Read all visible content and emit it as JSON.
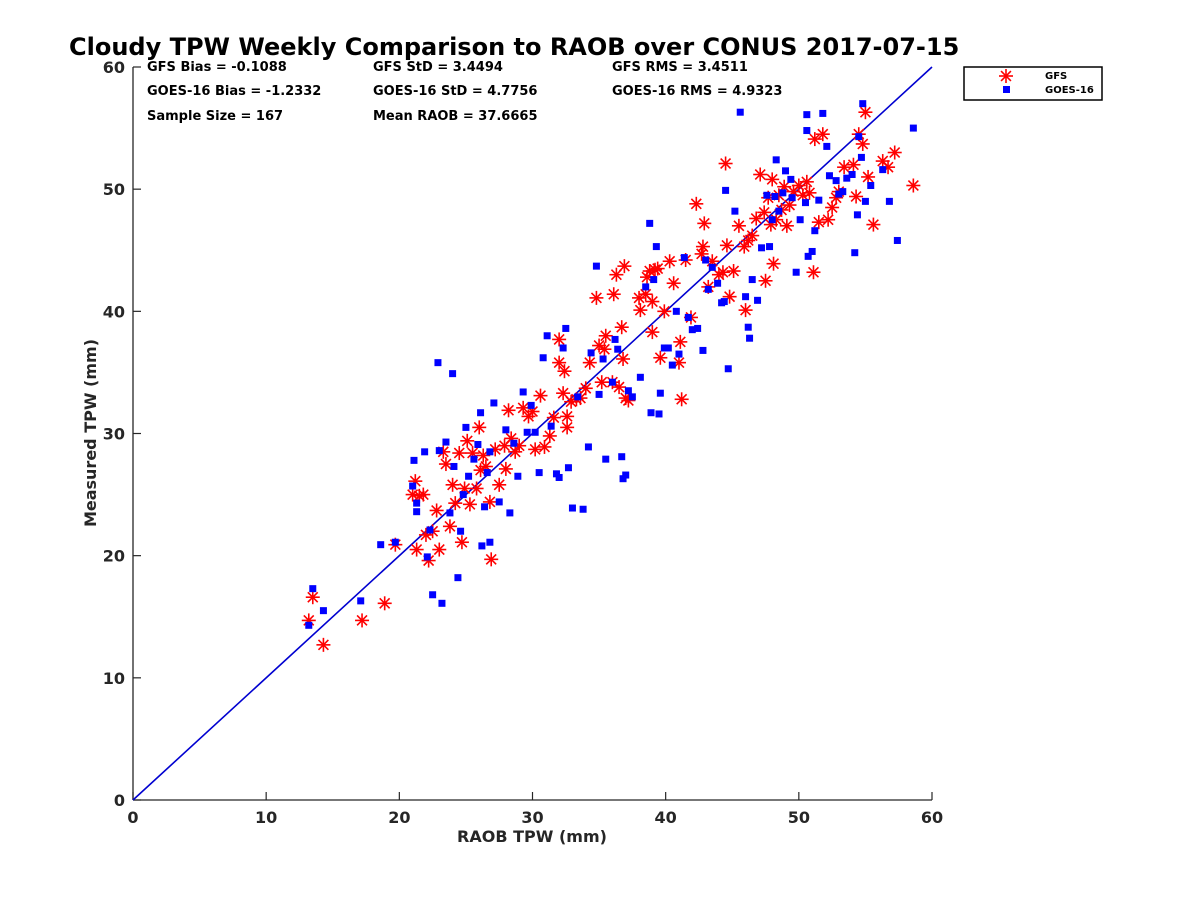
{
  "chart_data": {
    "type": "scatter",
    "title": "Cloudy TPW Weekly Comparison to RAOB over CONUS 2017-07-15",
    "xlabel": "RAOB TPW (mm)",
    "ylabel": "Measured TPW (mm)",
    "xlim": [
      0,
      60
    ],
    "ylim": [
      0,
      60
    ],
    "xticks": [
      "0",
      "10",
      "20",
      "30",
      "40",
      "50",
      "60"
    ],
    "yticks": [
      "0",
      "10",
      "20",
      "30",
      "40",
      "50",
      "60"
    ],
    "grid": false,
    "legend_position": "outside top-right",
    "reference_line": {
      "label": "1:1",
      "color": "#0000d0",
      "from": [
        0,
        0
      ],
      "to": [
        60,
        60
      ]
    },
    "stats": {
      "gfs_bias": "GFS Bias = -0.1088",
      "goes_bias": "GOES-16 Bias = -1.2332",
      "sample_size": "Sample Size = 167",
      "gfs_std": "GFS StD = 3.4494",
      "goes_std": "GOES-16 StD = 4.7756",
      "mean_raob": "Mean RAOB = 37.6665",
      "gfs_rms": "GFS RMS = 3.4511",
      "goes_rms": "GOES-16 RMS = 4.9323"
    },
    "series": [
      {
        "name": "GFS",
        "marker": "asterisk",
        "color": "#ff0000",
        "points": [
          [
            13.2,
            14.7
          ],
          [
            13.5,
            16.6
          ],
          [
            14.3,
            12.7
          ],
          [
            17.2,
            14.7
          ],
          [
            18.9,
            16.1
          ],
          [
            19.7,
            20.9
          ],
          [
            21.0,
            25.0
          ],
          [
            21.2,
            26.1
          ],
          [
            21.3,
            20.5
          ],
          [
            21.5,
            24.9
          ],
          [
            21.8,
            25.0
          ],
          [
            22.0,
            21.7
          ],
          [
            22.2,
            19.6
          ],
          [
            22.5,
            22.0
          ],
          [
            22.8,
            23.7
          ],
          [
            23.0,
            20.5
          ],
          [
            23.3,
            28.5
          ],
          [
            23.5,
            27.5
          ],
          [
            23.8,
            22.4
          ],
          [
            24.0,
            25.8
          ],
          [
            24.2,
            24.3
          ],
          [
            24.5,
            28.4
          ],
          [
            24.7,
            21.1
          ],
          [
            24.9,
            25.5
          ],
          [
            25.1,
            29.4
          ],
          [
            25.3,
            24.2
          ],
          [
            25.5,
            28.4
          ],
          [
            25.8,
            25.5
          ],
          [
            26.0,
            30.5
          ],
          [
            26.1,
            27.0
          ],
          [
            26.3,
            28.2
          ],
          [
            26.5,
            27.3
          ],
          [
            26.8,
            24.4
          ],
          [
            26.9,
            19.7
          ],
          [
            27.2,
            28.7
          ],
          [
            27.5,
            25.8
          ],
          [
            27.9,
            29.0
          ],
          [
            28.0,
            27.1
          ],
          [
            28.2,
            31.9
          ],
          [
            28.4,
            29.6
          ],
          [
            28.7,
            28.5
          ],
          [
            29.0,
            29.0
          ],
          [
            29.3,
            32.1
          ],
          [
            29.7,
            31.4
          ],
          [
            30.0,
            31.8
          ],
          [
            30.2,
            28.7
          ],
          [
            30.6,
            33.1
          ],
          [
            30.9,
            28.9
          ],
          [
            31.3,
            29.8
          ],
          [
            31.6,
            31.3
          ],
          [
            32.0,
            35.8
          ],
          [
            32.0,
            37.7
          ],
          [
            32.3,
            33.3
          ],
          [
            32.4,
            35.1
          ],
          [
            32.6,
            31.4
          ],
          [
            32.6,
            30.5
          ],
          [
            32.9,
            32.6
          ],
          [
            33.3,
            32.8
          ],
          [
            33.6,
            32.9
          ],
          [
            34.0,
            33.7
          ],
          [
            34.3,
            35.8
          ],
          [
            34.8,
            41.1
          ],
          [
            35.0,
            37.2
          ],
          [
            35.2,
            34.2
          ],
          [
            35.4,
            36.9
          ],
          [
            35.5,
            38.0
          ],
          [
            36.0,
            34.2
          ],
          [
            36.1,
            41.4
          ],
          [
            36.3,
            43.0
          ],
          [
            36.5,
            33.8
          ],
          [
            36.7,
            38.7
          ],
          [
            36.8,
            36.1
          ],
          [
            36.9,
            43.7
          ],
          [
            37.0,
            32.9
          ],
          [
            37.2,
            32.7
          ],
          [
            38.0,
            41.1
          ],
          [
            38.1,
            40.1
          ],
          [
            38.5,
            41.4
          ],
          [
            38.6,
            42.8
          ],
          [
            38.8,
            43.3
          ],
          [
            39.0,
            38.3
          ],
          [
            39.0,
            40.8
          ],
          [
            39.2,
            43.4
          ],
          [
            39.4,
            43.5
          ],
          [
            39.6,
            36.2
          ],
          [
            39.9,
            40.0
          ],
          [
            40.3,
            44.1
          ],
          [
            40.6,
            42.3
          ],
          [
            41.0,
            35.8
          ],
          [
            41.1,
            37.5
          ],
          [
            41.2,
            32.8
          ],
          [
            41.5,
            44.2
          ],
          [
            41.9,
            39.5
          ],
          [
            42.3,
            48.8
          ],
          [
            42.7,
            44.7
          ],
          [
            42.8,
            45.3
          ],
          [
            42.9,
            47.2
          ],
          [
            43.2,
            42.0
          ],
          [
            43.5,
            44.1
          ],
          [
            44.0,
            43.0
          ],
          [
            44.3,
            43.2
          ],
          [
            44.5,
            52.1
          ],
          [
            44.6,
            45.4
          ],
          [
            44.8,
            41.2
          ],
          [
            45.1,
            43.3
          ],
          [
            45.5,
            47.0
          ],
          [
            45.9,
            45.3
          ],
          [
            46.0,
            40.1
          ],
          [
            46.2,
            45.8
          ],
          [
            46.5,
            46.2
          ],
          [
            46.8,
            47.6
          ],
          [
            47.1,
            51.2
          ],
          [
            47.4,
            48.1
          ],
          [
            47.5,
            42.5
          ],
          [
            47.7,
            49.3
          ],
          [
            47.9,
            47.1
          ],
          [
            48.0,
            50.8
          ],
          [
            48.1,
            43.9
          ],
          [
            48.3,
            47.5
          ],
          [
            48.5,
            49.5
          ],
          [
            48.7,
            48.3
          ],
          [
            48.9,
            50.2
          ],
          [
            49.1,
            47.0
          ],
          [
            49.3,
            48.7
          ],
          [
            49.6,
            49.8
          ],
          [
            50.0,
            50.3
          ],
          [
            50.3,
            49.5
          ],
          [
            50.6,
            50.6
          ],
          [
            50.8,
            49.7
          ],
          [
            51.1,
            43.2
          ],
          [
            51.2,
            54.1
          ],
          [
            51.5,
            47.3
          ],
          [
            51.8,
            54.5
          ],
          [
            52.2,
            47.5
          ],
          [
            52.5,
            48.5
          ],
          [
            52.8,
            49.3
          ],
          [
            53.0,
            49.8
          ],
          [
            53.4,
            51.8
          ],
          [
            54.1,
            52.0
          ],
          [
            54.3,
            49.4
          ],
          [
            54.5,
            54.5
          ],
          [
            54.8,
            53.7
          ],
          [
            55.0,
            56.3
          ],
          [
            55.2,
            51.0
          ],
          [
            55.6,
            47.1
          ],
          [
            56.3,
            52.3
          ],
          [
            56.7,
            51.8
          ],
          [
            57.2,
            53.0
          ],
          [
            58.6,
            50.3
          ]
        ]
      },
      {
        "name": "GOES-16",
        "marker": "square",
        "color": "#0000ff",
        "points": [
          [
            13.2,
            14.3
          ],
          [
            13.5,
            17.3
          ],
          [
            14.3,
            15.5
          ],
          [
            17.1,
            16.3
          ],
          [
            18.6,
            20.9
          ],
          [
            19.7,
            21.1
          ],
          [
            21.0,
            25.7
          ],
          [
            21.1,
            27.8
          ],
          [
            21.3,
            24.3
          ],
          [
            21.3,
            23.6
          ],
          [
            21.9,
            28.5
          ],
          [
            22.1,
            19.9
          ],
          [
            22.3,
            22.1
          ],
          [
            22.5,
            16.8
          ],
          [
            22.9,
            35.8
          ],
          [
            23.0,
            28.6
          ],
          [
            23.2,
            16.1
          ],
          [
            23.5,
            29.3
          ],
          [
            23.8,
            23.5
          ],
          [
            24.0,
            34.9
          ],
          [
            24.1,
            27.3
          ],
          [
            24.4,
            18.2
          ],
          [
            24.6,
            22.0
          ],
          [
            24.8,
            25.0
          ],
          [
            25.0,
            30.5
          ],
          [
            25.2,
            26.5
          ],
          [
            25.6,
            27.9
          ],
          [
            25.9,
            29.1
          ],
          [
            26.1,
            31.7
          ],
          [
            26.2,
            20.8
          ],
          [
            26.4,
            24.0
          ],
          [
            26.6,
            26.8
          ],
          [
            26.8,
            21.1
          ],
          [
            26.8,
            28.5
          ],
          [
            27.1,
            32.5
          ],
          [
            27.5,
            24.4
          ],
          [
            28.0,
            30.3
          ],
          [
            28.3,
            23.5
          ],
          [
            28.6,
            29.2
          ],
          [
            28.9,
            26.5
          ],
          [
            29.3,
            33.4
          ],
          [
            29.6,
            30.1
          ],
          [
            29.9,
            32.3
          ],
          [
            30.2,
            30.1
          ],
          [
            30.5,
            26.8
          ],
          [
            30.8,
            36.2
          ],
          [
            31.1,
            38.0
          ],
          [
            31.4,
            30.6
          ],
          [
            31.8,
            26.7
          ],
          [
            32.0,
            26.4
          ],
          [
            32.3,
            37.0
          ],
          [
            32.5,
            38.6
          ],
          [
            32.7,
            27.2
          ],
          [
            33.0,
            23.9
          ],
          [
            33.4,
            33.0
          ],
          [
            33.8,
            23.8
          ],
          [
            34.2,
            28.9
          ],
          [
            34.4,
            36.6
          ],
          [
            34.8,
            43.7
          ],
          [
            35.0,
            33.2
          ],
          [
            35.3,
            36.1
          ],
          [
            35.5,
            27.9
          ],
          [
            36.0,
            34.2
          ],
          [
            36.2,
            37.7
          ],
          [
            36.4,
            36.9
          ],
          [
            36.7,
            28.1
          ],
          [
            36.8,
            26.3
          ],
          [
            37.0,
            26.6
          ],
          [
            37.2,
            33.5
          ],
          [
            37.5,
            33.0
          ],
          [
            38.1,
            34.6
          ],
          [
            38.5,
            42.0
          ],
          [
            38.8,
            47.2
          ],
          [
            38.9,
            31.7
          ],
          [
            39.1,
            42.6
          ],
          [
            39.3,
            45.3
          ],
          [
            39.5,
            31.6
          ],
          [
            39.6,
            33.3
          ],
          [
            39.9,
            37.0
          ],
          [
            40.2,
            37.0
          ],
          [
            40.5,
            35.6
          ],
          [
            40.8,
            40.0
          ],
          [
            41.0,
            36.5
          ],
          [
            41.4,
            44.4
          ],
          [
            41.7,
            39.5
          ],
          [
            42.0,
            38.5
          ],
          [
            42.4,
            38.6
          ],
          [
            42.8,
            36.8
          ],
          [
            43.0,
            44.2
          ],
          [
            43.2,
            41.8
          ],
          [
            43.5,
            43.6
          ],
          [
            43.9,
            42.3
          ],
          [
            44.2,
            40.7
          ],
          [
            44.4,
            40.8
          ],
          [
            44.5,
            49.9
          ],
          [
            44.7,
            35.3
          ],
          [
            45.2,
            48.2
          ],
          [
            45.6,
            56.3
          ],
          [
            46.0,
            41.2
          ],
          [
            46.2,
            38.7
          ],
          [
            46.3,
            37.8
          ],
          [
            46.5,
            42.6
          ],
          [
            46.9,
            40.9
          ],
          [
            47.2,
            45.2
          ],
          [
            47.6,
            49.5
          ],
          [
            47.8,
            45.3
          ],
          [
            48.0,
            47.5
          ],
          [
            48.2,
            49.4
          ],
          [
            48.3,
            52.4
          ],
          [
            48.5,
            48.2
          ],
          [
            48.8,
            49.7
          ],
          [
            49.0,
            51.5
          ],
          [
            49.4,
            50.8
          ],
          [
            49.5,
            49.3
          ],
          [
            49.8,
            43.2
          ],
          [
            50.1,
            47.5
          ],
          [
            50.5,
            48.9
          ],
          [
            50.7,
            44.5
          ],
          [
            51.0,
            44.9
          ],
          [
            51.2,
            46.6
          ],
          [
            51.5,
            49.1
          ],
          [
            51.8,
            56.2
          ],
          [
            52.3,
            51.1
          ],
          [
            52.8,
            50.7
          ],
          [
            53.0,
            49.6
          ],
          [
            53.3,
            49.8
          ],
          [
            53.6,
            50.9
          ],
          [
            54.0,
            51.2
          ],
          [
            54.2,
            44.8
          ],
          [
            54.4,
            47.9
          ],
          [
            54.5,
            54.3
          ],
          [
            54.7,
            52.6
          ],
          [
            54.8,
            57.0
          ],
          [
            55.0,
            49.0
          ],
          [
            55.4,
            50.3
          ],
          [
            56.3,
            51.6
          ],
          [
            56.8,
            49.0
          ],
          [
            57.4,
            45.8
          ],
          [
            58.6,
            55.0
          ],
          [
            50.6,
            56.1
          ],
          [
            50.6,
            54.8
          ],
          [
            52.1,
            53.5
          ]
        ]
      }
    ]
  }
}
